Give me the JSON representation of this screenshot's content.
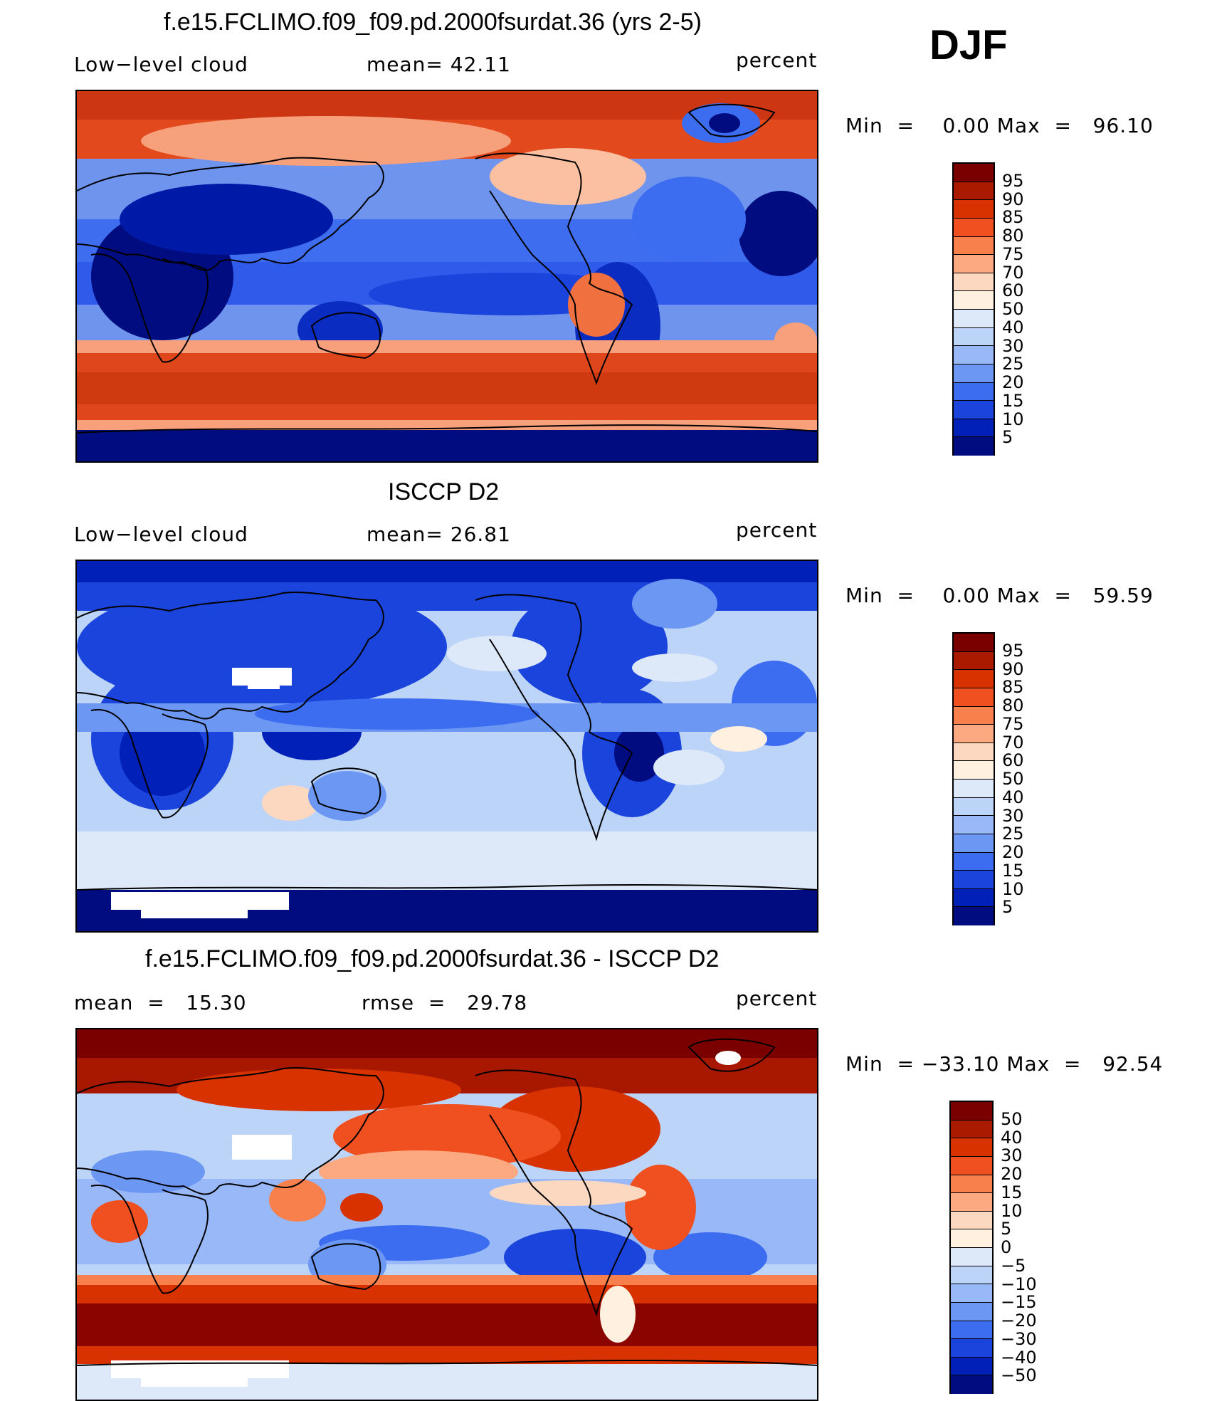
{
  "season": "DJF",
  "panels": [
    {
      "title": "f.e15.FCLIMO.f09_f09.pd.2000fsurdat.36 (yrs 2-5)",
      "left_label": "Low−level cloud",
      "mid_label": "mean=   42.11",
      "units": "percent",
      "minmax": "Min  =    0.00 Max  =   96.10",
      "colorbar_labels": [
        "95",
        "90",
        "85",
        "80",
        "75",
        "70",
        "60",
        "50",
        "40",
        "30",
        "25",
        "20",
        "15",
        "10",
        "5"
      ]
    },
    {
      "title": "ISCCP D2",
      "left_label": "Low−level cloud",
      "mid_label": "mean=   26.81",
      "units": "percent",
      "minmax": "Min  =    0.00 Max  =   59.59",
      "colorbar_labels": [
        "95",
        "90",
        "85",
        "80",
        "75",
        "70",
        "60",
        "50",
        "40",
        "30",
        "25",
        "20",
        "15",
        "10",
        "5"
      ]
    },
    {
      "title": "f.e15.FCLIMO.f09_f09.pd.2000fsurdat.36 - ISCCP D2",
      "left_label": "mean  =   15.30",
      "mid_label": "rmse  =   29.78",
      "units": "percent",
      "minmax": "Min  = −33.10 Max  =   92.54",
      "colorbar_labels": [
        "50",
        "40",
        "30",
        "20",
        "15",
        "10",
        "5",
        "0",
        "−5",
        "−10",
        "−15",
        "−20",
        "−30",
        "−40",
        "−50"
      ]
    }
  ],
  "colors": {
    "cbar": [
      "#7a0000",
      "#aa1a00",
      "#d83200",
      "#f05020",
      "#f8804c",
      "#fca880",
      "#fdd8c0",
      "#fff0e0",
      "#dde8f8",
      "#bcd4f8",
      "#98b8f8",
      "#6c98f4",
      "#3c6cf0",
      "#1a44dc",
      "#0020b8",
      "#000c80"
    ]
  }
}
